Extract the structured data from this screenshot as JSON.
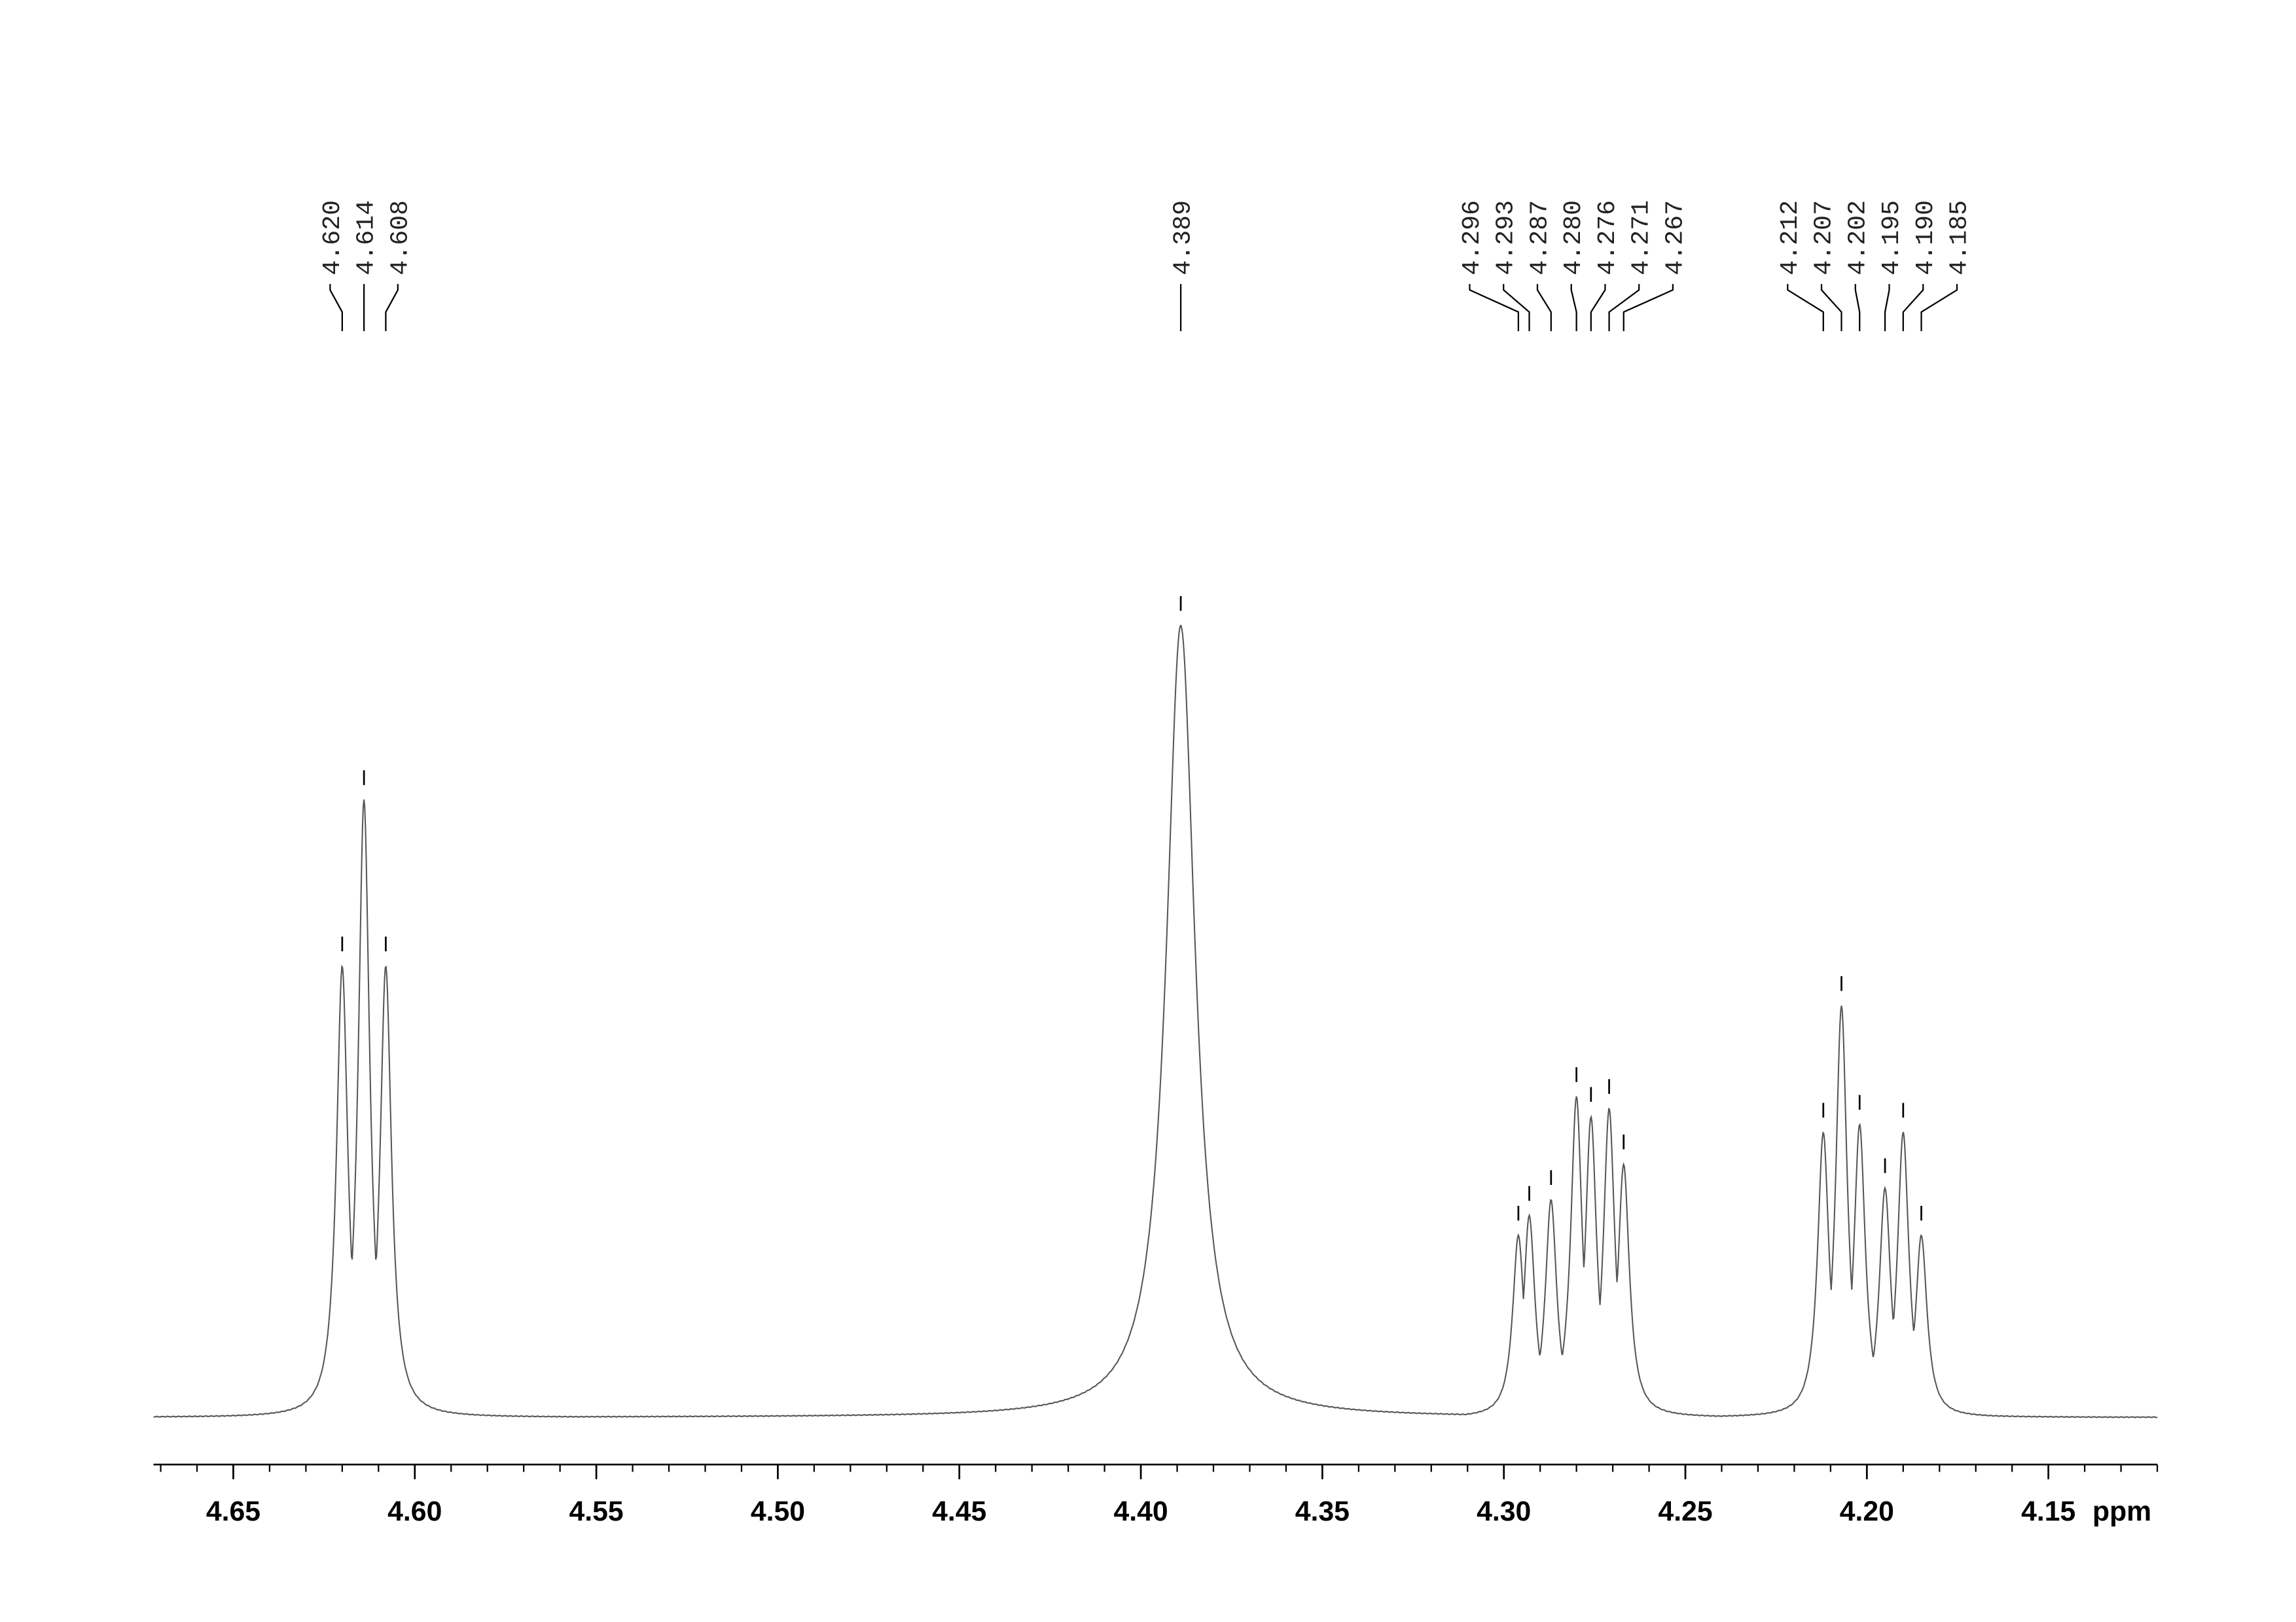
{
  "chart_data": {
    "type": "nmr",
    "xlabel": "ppm",
    "xlim": [
      4.672,
      4.12
    ],
    "xticks": [
      4.65,
      {
        "value": 4.6,
        "label": "4.60"
      },
      4.55,
      {
        "value": 4.5,
        "label": "4.50"
      },
      4.45,
      {
        "value": 4.4,
        "label": "4.40"
      },
      4.35,
      {
        "value": 4.3,
        "label": "4.30"
      },
      4.25,
      {
        "value": 4.2,
        "label": "4.20"
      },
      4.15
    ],
    "xminorticks": [
      4.67,
      4.66,
      4.65,
      4.64,
      4.63,
      4.62,
      4.61,
      4.6,
      4.59,
      4.58,
      4.57,
      4.56,
      4.55,
      4.54,
      4.53,
      4.52,
      4.51,
      4.5,
      4.49,
      4.48,
      4.47,
      4.46,
      4.45,
      4.44,
      4.43,
      4.42,
      4.41,
      4.4,
      4.39,
      4.38,
      4.37,
      4.36,
      4.35,
      4.34,
      4.33,
      4.32,
      4.31,
      4.3,
      4.29,
      4.28,
      4.27,
      4.26,
      4.25,
      4.24,
      4.23,
      4.22,
      4.21,
      4.2,
      4.19,
      4.18,
      4.17,
      4.16,
      4.15,
      4.14,
      4.13,
      4.12
    ],
    "ylim": [
      0,
      100
    ],
    "color": "#555555",
    "x": [
      4.62,
      4.614,
      4.608,
      4.389,
      4.296,
      4.293,
      4.287,
      4.28,
      4.276,
      4.271,
      4.267,
      4.212,
      4.207,
      4.202,
      4.195,
      4.19,
      4.185
    ],
    "values": [
      57,
      78,
      57,
      100,
      23,
      25.5,
      27.5,
      40.5,
      38,
      39,
      32,
      36,
      52,
      37,
      29,
      36,
      23
    ],
    "value_labels": [
      "4.620",
      "4.614",
      "4.608",
      "4.389",
      "4.296",
      "4.293",
      "4.287",
      "4.280",
      "4.276",
      "4.271",
      "4.267",
      "4.212",
      "4.207",
      "4.202",
      "4.195",
      "4.190",
      "4.185"
    ]
  }
}
